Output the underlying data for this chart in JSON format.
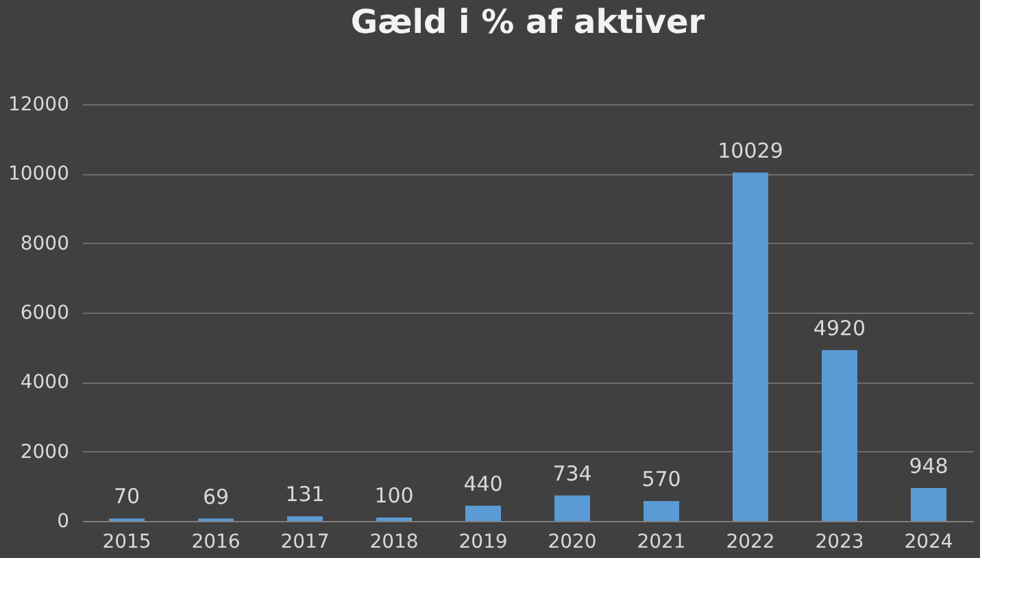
{
  "chart_data": {
    "type": "bar",
    "title": "Gæld i % af aktiver",
    "categories": [
      "2015",
      "2016",
      "2017",
      "2018",
      "2019",
      "2020",
      "2021",
      "2022",
      "2023",
      "2024"
    ],
    "values": [
      70,
      69,
      131,
      100,
      440,
      734,
      570,
      10029,
      4920,
      948
    ],
    "color": "#5b9bd5",
    "ylim": [
      0,
      12000
    ],
    "yticks": [
      0,
      2000,
      4000,
      6000,
      8000,
      10000,
      12000
    ],
    "grid": "y",
    "data_labels": true
  }
}
